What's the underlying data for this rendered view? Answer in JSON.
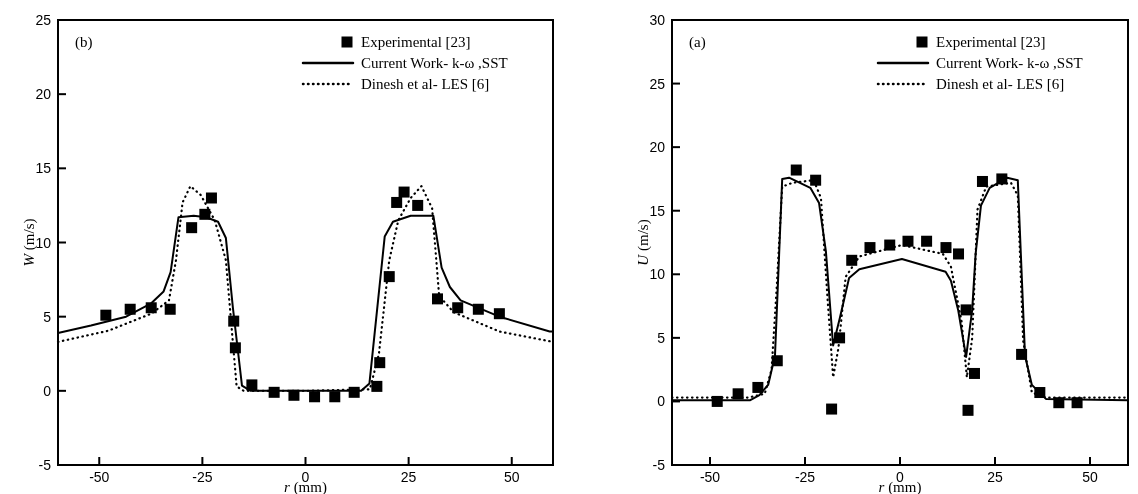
{
  "chart_data": [
    {
      "type": "line",
      "annotations": [
        "(b)"
      ],
      "xlabel": "r (mm)",
      "ylabel": "W (m/s)",
      "xlim": [
        -60,
        60
      ],
      "xticks": [
        -50,
        -25,
        0,
        25,
        50
      ],
      "ylim": [
        -5,
        25
      ],
      "yticks": [
        -5,
        0,
        5,
        10,
        15,
        20,
        25
      ],
      "legend": "top right",
      "series": [
        {
          "name": "Experimental [23]",
          "type": "scatter",
          "marker": "square",
          "color": "#000000",
          "x": [
            -48.4,
            -42.5,
            -37.4,
            -32.8,
            -27.6,
            -24.4,
            -22.8,
            -17.4,
            -17,
            -13,
            -7.6,
            -2.8,
            2.2,
            7.1,
            11.8,
            17.3,
            18,
            20.3,
            22.1,
            23.9,
            27.2,
            32,
            36.9,
            41.9,
            47
          ],
          "values": [
            5.1,
            5.5,
            5.6,
            5.5,
            11,
            11.9,
            13,
            4.7,
            2.9,
            0.4,
            -0.1,
            -0.3,
            -0.4,
            -0.4,
            -0.1,
            0.3,
            1.9,
            7.7,
            12.7,
            13.4,
            12.5,
            6.2,
            5.6,
            5.5,
            5.2
          ]
        },
        {
          "name": "Current Work- k-ω ,SST",
          "type": "line",
          "line_style": "solid",
          "color": "#000000",
          "x": [
            -60,
            -52,
            -43.5,
            -37.4,
            -34.4,
            -32.7,
            -30.8,
            -27.1,
            -24.1,
            -21.2,
            -19.3,
            -17.6,
            -15.4,
            -13.3,
            0,
            13.5,
            15.5,
            19.2,
            21.2,
            25.5,
            31,
            33,
            35,
            37.6,
            47,
            59.2,
            60
          ],
          "values": [
            3.9,
            4.4,
            5,
            5.9,
            6.7,
            8,
            11.7,
            11.8,
            11.7,
            11.4,
            10.3,
            5.6,
            0.35,
            0,
            0,
            0,
            0.5,
            10.4,
            11.4,
            11.8,
            11.8,
            8.3,
            7,
            6.1,
            5,
            4,
            4
          ]
        },
        {
          "name": "Dinesh et al- LES [6]",
          "type": "line",
          "line_style": "dotted",
          "color": "#000000",
          "x": [
            -60,
            -47.8,
            -37.4,
            -33.1,
            -31.4,
            -29.8,
            -27.9,
            -25.4,
            -22,
            -19.3,
            -16.7,
            -15,
            0,
            15.6,
            17.8,
            20.3,
            22.5,
            25.5,
            28.1,
            30.7,
            32.4,
            35.9,
            47,
            60
          ],
          "values": [
            3.3,
            4.05,
            5.2,
            6.1,
            8.8,
            12.7,
            13.8,
            13.2,
            11.5,
            8.8,
            0.3,
            0,
            0,
            0.1,
            2.5,
            8.8,
            11.5,
            13,
            13.8,
            12.3,
            6.4,
            5.3,
            4,
            3.3
          ]
        }
      ]
    },
    {
      "type": "line",
      "annotations": [
        "(a)"
      ],
      "xlabel": "r (mm)",
      "ylabel": "U (m/s)",
      "xlim": [
        -60,
        60
      ],
      "xticks": [
        -50,
        -25,
        0,
        25,
        50
      ],
      "ylim": [
        -5,
        30
      ],
      "yticks": [
        -5,
        0,
        5,
        10,
        15,
        20,
        25,
        30
      ],
      "legend": "top right",
      "series": [
        {
          "name": "Experimental [23]",
          "type": "scatter",
          "marker": "square",
          "color": "#000000",
          "x": [
            -48.1,
            -42.6,
            -37.4,
            -32.3,
            -27.3,
            -22.2,
            -18,
            -15.9,
            -12.7,
            -7.9,
            -2.7,
            2.1,
            7,
            12.1,
            15.4,
            17.4,
            17.9,
            19.6,
            21.7,
            26.8,
            32,
            36.8,
            41.8,
            46.6
          ],
          "values": [
            0,
            0.6,
            1.1,
            3.2,
            18.2,
            17.4,
            -0.6,
            5,
            11.1,
            12.1,
            12.3,
            12.6,
            12.6,
            12.1,
            11.6,
            7.2,
            -0.7,
            2.2,
            17.3,
            17.5,
            3.7,
            0.7,
            -0.1,
            -0.1
          ]
        },
        {
          "name": "Current Work- k-ω ,SST",
          "type": "line",
          "line_style": "solid",
          "color": "#000000",
          "x": [
            -60,
            -39.4,
            -37,
            -34.7,
            -32.9,
            -31,
            -29.2,
            -23.6,
            -21.3,
            -19.5,
            -17.6,
            -15.8,
            -13.4,
            -10.7,
            0.5,
            12,
            13.4,
            15.3,
            17.4,
            19,
            19.9,
            21.3,
            23.6,
            28.2,
            31,
            32.9,
            34.7,
            38.4,
            60
          ],
          "values": [
            0.1,
            0.1,
            0.5,
            1.3,
            3.6,
            17.5,
            17.6,
            16.8,
            15.6,
            11.8,
            4.4,
            6.6,
            9.7,
            10.4,
            11.2,
            10.2,
            9.5,
            7.2,
            3.5,
            7.2,
            11.6,
            15.4,
            16.8,
            17.6,
            17.4,
            3.6,
            1.3,
            0.2,
            0.1
          ]
        },
        {
          "name": "Dinesh et al- LES [6]",
          "type": "line",
          "line_style": "dotted",
          "color": "#000000",
          "x": [
            -60,
            -40,
            -35.6,
            -33.8,
            -32.4,
            -31,
            -28.2,
            -22.7,
            -20.8,
            -19,
            -17.6,
            -16.2,
            -14.3,
            -10.7,
            0.5,
            11.3,
            13.4,
            16.2,
            17.6,
            19,
            20.4,
            22.7,
            29.2,
            31,
            32.4,
            34.7,
            38.4,
            60
          ],
          "values": [
            0.3,
            0.3,
            0.6,
            2.5,
            9.2,
            16.9,
            17.2,
            17.4,
            16,
            7.8,
            1.9,
            4.2,
            9.8,
            11.4,
            12.3,
            11.6,
            10.6,
            6.3,
            1.9,
            5,
            15.1,
            16.9,
            17.2,
            16.2,
            4.8,
            0.7,
            0.3,
            0.3
          ]
        }
      ]
    }
  ]
}
